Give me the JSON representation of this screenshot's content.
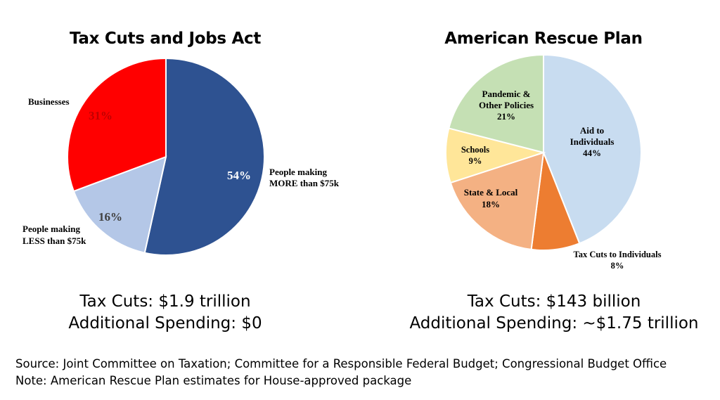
{
  "chart_data": [
    {
      "type": "pie",
      "title": "Tax Cuts and Jobs Act",
      "slices": [
        {
          "label": "People making MORE than $75k",
          "value": 54,
          "value_label": "54%",
          "color": "#2E5291"
        },
        {
          "label": "People making LESS than $75k",
          "value": 16,
          "value_label": "16%",
          "color": "#B4C7E7"
        },
        {
          "label": "Businesses",
          "value": 31,
          "value_label": "31%",
          "color": "#FF0000"
        }
      ],
      "summary": [
        "Tax Cuts: $1.9 trillion",
        "Additional Spending: $0"
      ]
    },
    {
      "type": "pie",
      "title": "American Rescue Plan",
      "slices": [
        {
          "label": "Aid to Individuals",
          "value": 44,
          "value_label": "44%",
          "color": "#C8DCF0"
        },
        {
          "label": "Tax Cuts to Individuals",
          "value": 8,
          "value_label": "8%",
          "color": "#ED7D31"
        },
        {
          "label": "State & Local",
          "value": 18,
          "value_label": "18%",
          "color": "#F4B183"
        },
        {
          "label": "Schools",
          "value": 9,
          "value_label": "9%",
          "color": "#FFE699"
        },
        {
          "label": "Pandemic & Other Policies",
          "value": 21,
          "value_label": "21%",
          "color": "#C5E0B4"
        }
      ],
      "summary": [
        "Tax Cuts: $143 billion",
        "Additional Spending: ~$1.75 trillion"
      ]
    }
  ],
  "footer": {
    "source": "Source: Joint Committee on Taxation; Committee for a Responsible Federal Budget; Congressional Budget Office",
    "note": "Note: American Rescue Plan estimates for House-approved package"
  }
}
